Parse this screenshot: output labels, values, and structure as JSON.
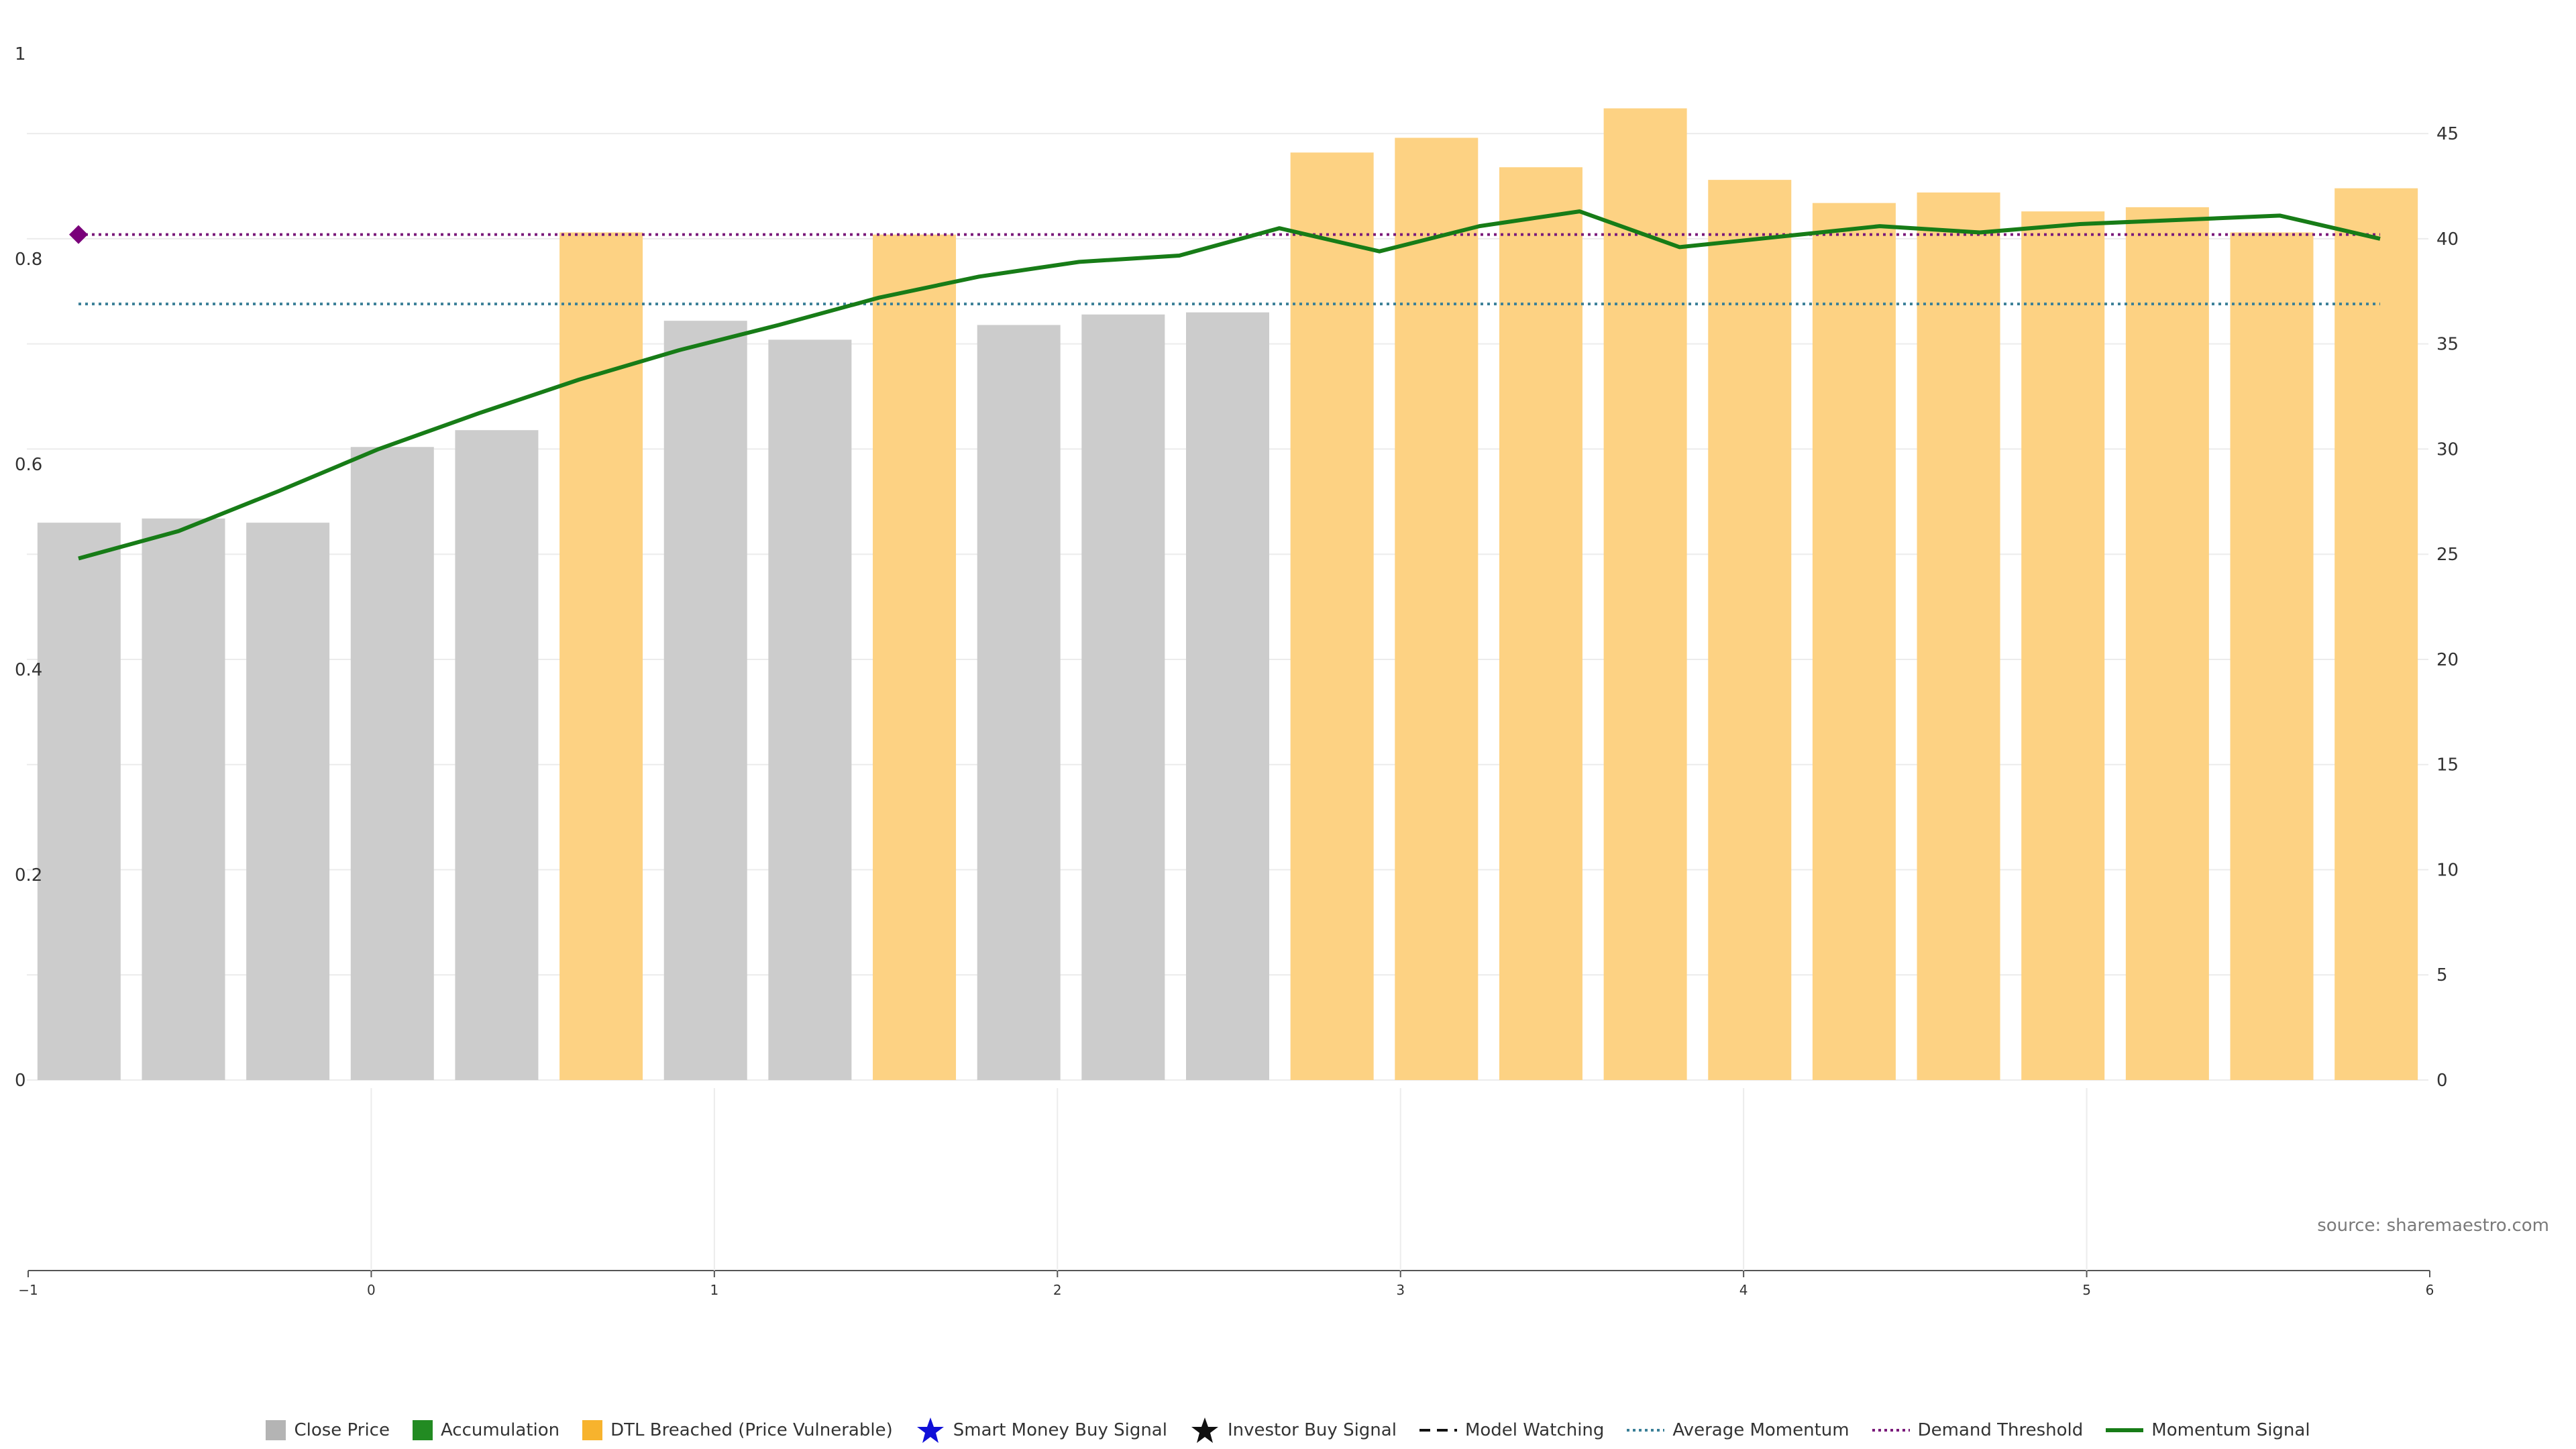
{
  "chart_data": {
    "type": "bar",
    "bar_values": [
      26.5,
      26.7,
      26.5,
      30.1,
      30.9,
      40.3,
      36.1,
      35.2,
      40.2,
      35.9,
      36.4,
      36.5,
      44.1,
      44.8,
      43.4,
      46.2,
      42.8,
      41.7,
      42.2,
      41.3,
      41.5,
      40.3,
      42.4
    ],
    "bar_states": [
      "close",
      "close",
      "close",
      "close",
      "close",
      "dtl",
      "close",
      "close",
      "dtl",
      "close",
      "close",
      "close",
      "dtl",
      "dtl",
      "dtl",
      "dtl",
      "dtl",
      "dtl",
      "dtl",
      "dtl",
      "dtl",
      "dtl",
      "dtl"
    ],
    "momentum_signal": [
      24.8,
      26.1,
      28.0,
      30.0,
      31.7,
      33.3,
      34.7,
      35.9,
      37.2,
      38.2,
      38.9,
      39.2,
      40.5,
      39.4,
      40.6,
      41.3,
      39.6,
      40.1,
      40.6,
      40.3,
      40.7,
      40.9,
      41.1,
      40.0
    ],
    "average_momentum": 36.9,
    "demand_threshold": 40.2,
    "marker_value": 40.2,
    "left_axis": {
      "ylim": [
        0,
        1
      ],
      "ticks": [
        "0",
        "0.2",
        "0.4",
        "0.6",
        "0.8",
        "1"
      ]
    },
    "right_axis": {
      "ylim": [
        0,
        48.8
      ],
      "ticks": [
        "0",
        "5",
        "10",
        "15",
        "20",
        "25",
        "30",
        "35",
        "40",
        "45"
      ]
    },
    "bottom_axis": {
      "xlim": [
        -1,
        6
      ],
      "ticks": [
        "−1",
        "0",
        "1",
        "2",
        "3",
        "4",
        "5",
        "6"
      ]
    },
    "colors": {
      "close": "#cccccc",
      "dtl": "#fdd283",
      "momentum": "#177c17",
      "average_momentum": "#3a7f97",
      "demand_threshold": "#7a1a7a",
      "marker": "#7a007a",
      "grid": "#ececec"
    },
    "legend": [
      {
        "label": "Close Price",
        "icon": "square",
        "color": "#b4b4b4"
      },
      {
        "label": "Accumulation",
        "icon": "square",
        "color": "#228b22"
      },
      {
        "label": "DTL Breached (Price Vulnerable)",
        "icon": "square",
        "color": "#f7b32d"
      },
      {
        "label": "Smart Money Buy Signal",
        "icon": "star",
        "color": "#1010d8"
      },
      {
        "label": "Investor Buy Signal",
        "icon": "star",
        "color": "#111111"
      },
      {
        "label": "Model Watching",
        "icon": "dashed",
        "color": "#111111"
      },
      {
        "label": "Average Momentum",
        "icon": "dotted",
        "color": "#3a7f97"
      },
      {
        "label": "Demand Threshold",
        "icon": "dotted",
        "color": "#7a1a7a"
      },
      {
        "label": "Momentum Signal",
        "icon": "solid",
        "color": "#177c17"
      }
    ]
  },
  "source_text": "source: sharemaestro.com"
}
